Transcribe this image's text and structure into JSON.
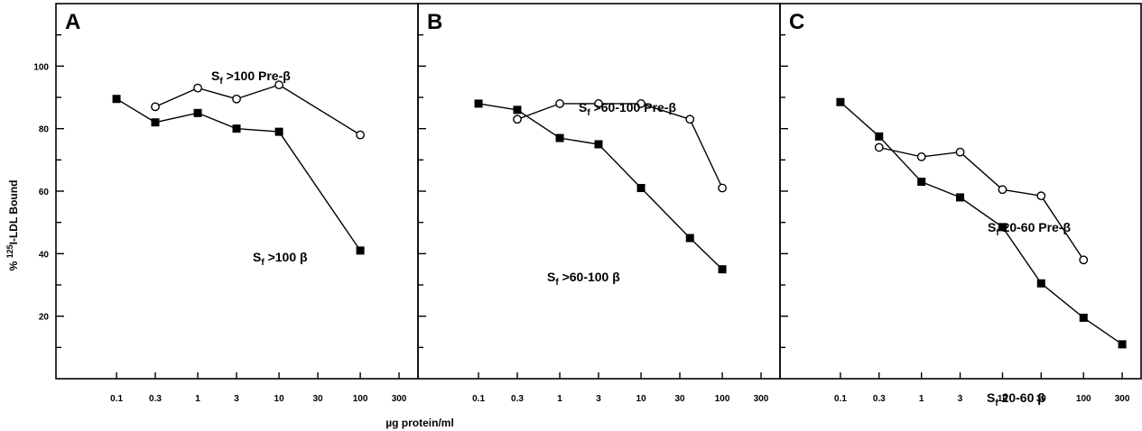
{
  "chart_data": {
    "type": "line",
    "ylabel": {
      "prefix": "% ",
      "sup": "125",
      "rest": "I-LDL Bound"
    },
    "xlabel": "µg protein/ml",
    "xscale": "log",
    "xticks": [
      0.1,
      0.3,
      1,
      3,
      10,
      30,
      100,
      300
    ],
    "xtick_labels": [
      "0.1",
      "0.3",
      "1",
      "3",
      "10",
      "30",
      "100",
      "300"
    ],
    "xlim": [
      0.03,
      500
    ],
    "yticks": [
      20,
      40,
      60,
      80,
      100
    ],
    "ytick_labels": [
      "20",
      "40",
      "60",
      "80",
      "100"
    ],
    "ylim": [
      0,
      120
    ],
    "grid": false,
    "legend": "none",
    "panels": [
      {
        "letter": "A",
        "series": [
          {
            "marker": "open-circle",
            "label": {
              "main": "S",
              "sub": "f",
              "rest": " >100 Pre-β"
            },
            "points": [
              [
                0.3,
                87
              ],
              [
                1,
                93
              ],
              [
                3,
                89.5
              ],
              [
                10,
                94
              ],
              [
                100,
                78
              ]
            ]
          },
          {
            "marker": "filled-square",
            "label": {
              "main": "S",
              "sub": "f",
              "rest": " >100 β"
            },
            "points": [
              [
                0.1,
                89.5
              ],
              [
                0.3,
                82
              ],
              [
                1,
                85
              ],
              [
                3,
                80
              ],
              [
                10,
                79
              ],
              [
                100,
                41
              ]
            ]
          }
        ]
      },
      {
        "letter": "B",
        "series": [
          {
            "marker": "open-circle",
            "label": {
              "main": "S",
              "sub": "f",
              "rest": " >60-100 Pre-β"
            },
            "points": [
              [
                0.3,
                83
              ],
              [
                1,
                88
              ],
              [
                3,
                88
              ],
              [
                10,
                88
              ],
              [
                40,
                83
              ],
              [
                100,
                61
              ]
            ]
          },
          {
            "marker": "filled-square",
            "label": {
              "main": "S",
              "sub": "f",
              "rest": " >60-100 β"
            },
            "points": [
              [
                0.1,
                88
              ],
              [
                0.3,
                86
              ],
              [
                1,
                77
              ],
              [
                3,
                75
              ],
              [
                10,
                61
              ],
              [
                40,
                45
              ],
              [
                100,
                35
              ]
            ]
          }
        ]
      },
      {
        "letter": "C",
        "series": [
          {
            "marker": "open-circle",
            "label": {
              "main": "S",
              "sub": "f",
              "rest": "  20-60 Pre-β"
            },
            "points": [
              [
                0.3,
                74
              ],
              [
                1,
                71
              ],
              [
                3,
                72.5
              ],
              [
                10,
                60.5
              ],
              [
                30,
                58.5
              ],
              [
                100,
                38
              ]
            ]
          },
          {
            "marker": "filled-square",
            "label": {
              "main": "S",
              "sub": "f",
              "rest": "  20-60 β"
            },
            "points": [
              [
                0.1,
                88.5
              ],
              [
                0.3,
                77.5
              ],
              [
                1,
                63
              ],
              [
                3,
                58
              ],
              [
                10,
                48.5
              ],
              [
                30,
                30.5
              ],
              [
                100,
                19.5
              ],
              [
                300,
                11
              ]
            ]
          }
        ]
      }
    ]
  }
}
